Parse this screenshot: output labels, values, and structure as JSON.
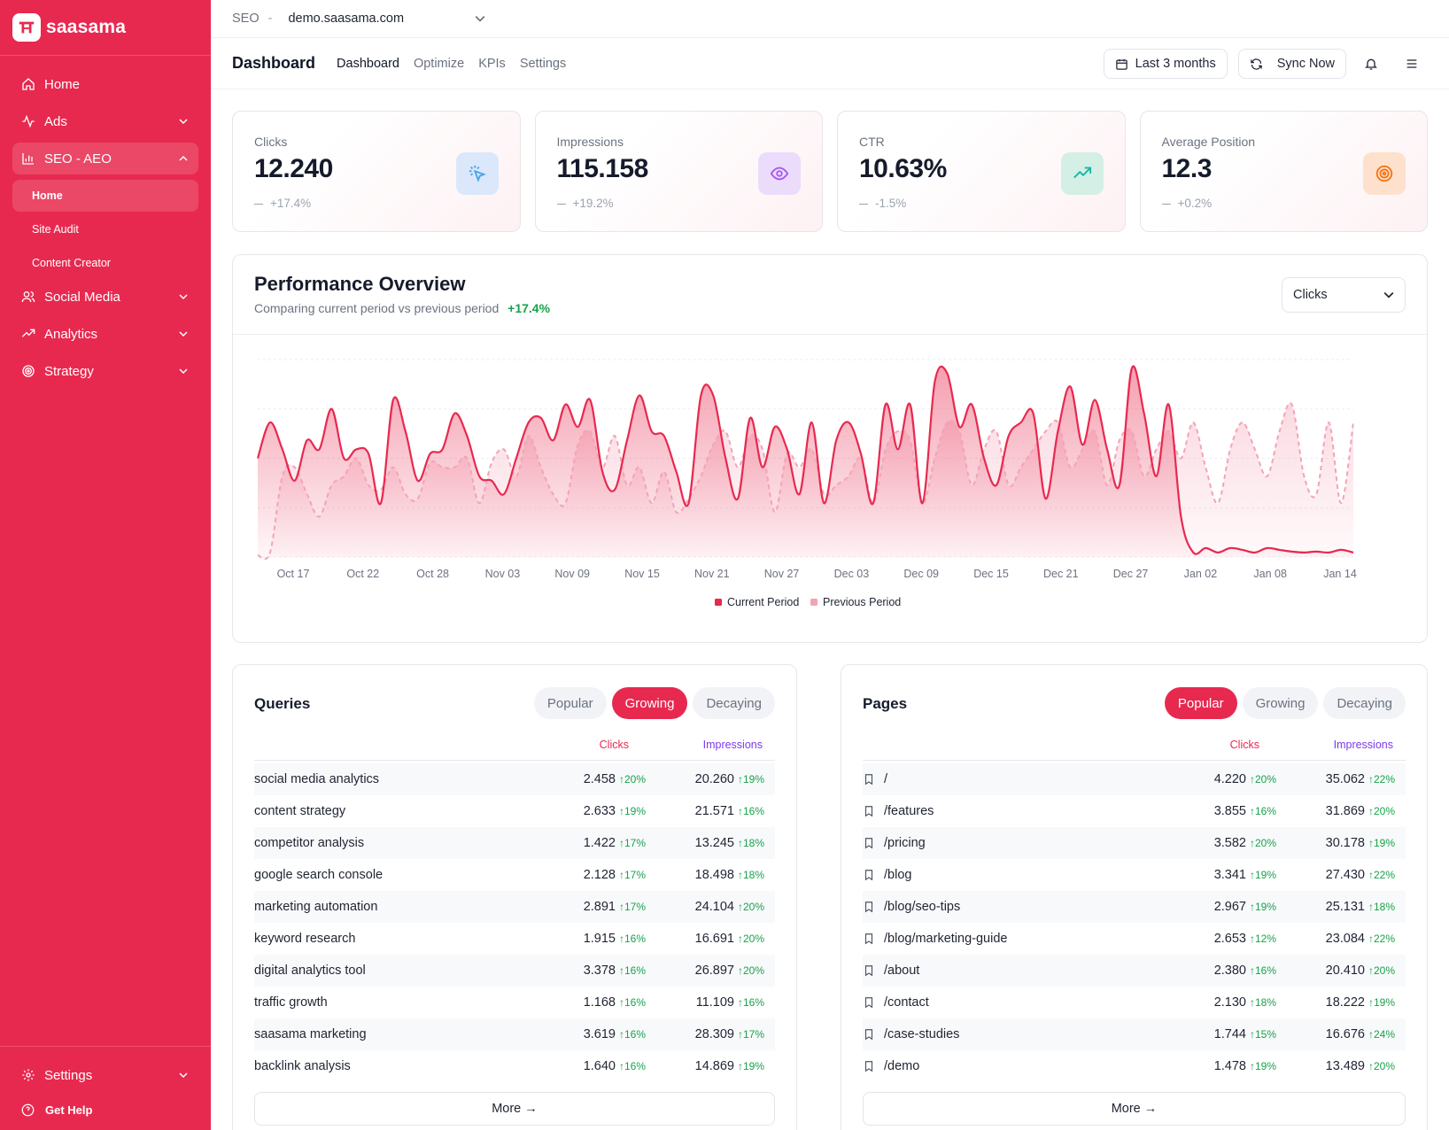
{
  "brand": {
    "name": "saasama",
    "accent": "#e8294f"
  },
  "sidebar": {
    "items": [
      {
        "label": "Home"
      },
      {
        "label": "Ads"
      },
      {
        "label": "SEO - AEO"
      },
      {
        "label": "Social Media"
      },
      {
        "label": "Analytics"
      },
      {
        "label": "Strategy"
      }
    ],
    "seo_sub": [
      "Home",
      "Site Audit",
      "Content Creator"
    ],
    "settings": "Settings",
    "help": "Get Help"
  },
  "topbar": {
    "label": "SEO",
    "separator": "-",
    "site": "demo.saasama.com"
  },
  "subbar": {
    "title": "Dashboard",
    "tabs": [
      "Dashboard",
      "Optimize",
      "KPIs",
      "Settings"
    ],
    "range_button": "Last 3 months",
    "sync_button": "Sync Now"
  },
  "stats": [
    {
      "label": "Clicks",
      "value": "12.240",
      "change": "+17.4%",
      "icon": "cursor-click-icon",
      "icon_bg": "#dbe7fb",
      "icon_color": "#4aa4e8"
    },
    {
      "label": "Impressions",
      "value": "115.158",
      "change": "+19.2%",
      "icon": "eye-icon",
      "icon_bg": "#ecdcfb",
      "icon_color": "#a855f7"
    },
    {
      "label": "CTR",
      "value": "10.63%",
      "change": "-1.5%",
      "icon": "trending-up-icon",
      "icon_bg": "#d3efe6",
      "icon_color": "#14b8a6"
    },
    {
      "label": "Average Position",
      "value": "12.3",
      "change": "+0.2%",
      "icon": "target-icon",
      "icon_bg": "#fde1cc",
      "icon_color": "#f97316"
    }
  ],
  "performance": {
    "title": "Performance Overview",
    "subtitle": "Comparing current period vs previous period",
    "change": "+17.4%",
    "metric_select": "Clicks"
  },
  "chart_data": {
    "type": "area",
    "title": "Performance Overview",
    "x_ticks": [
      "Oct 17",
      "Oct 22",
      "Oct 28",
      "Nov 03",
      "Nov 09",
      "Nov 15",
      "Nov 21",
      "Nov 27",
      "Dec 03",
      "Dec 09",
      "Dec 15",
      "Dec 21",
      "Dec 27",
      "Jan 02",
      "Jan 08",
      "Jan 14"
    ],
    "ylim": [
      0,
      220
    ],
    "legend": [
      "Current Period",
      "Previous Period"
    ],
    "series": [
      {
        "name": "Current Period",
        "color": "#e8294f",
        "style": "solid",
        "values": [
          110,
          150,
          120,
          85,
          130,
          120,
          165,
          110,
          120,
          115,
          60,
          175,
          140,
          85,
          115,
          120,
          160,
          135,
          90,
          85,
          70,
          110,
          150,
          155,
          130,
          170,
          145,
          175,
          95,
          75,
          130,
          180,
          140,
          135,
          95,
          60,
          180,
          180,
          110,
          65,
          155,
          100,
          145,
          120,
          70,
          150,
          60,
          130,
          150,
          115,
          60,
          170,
          120,
          170,
          60,
          195,
          205,
          145,
          170,
          110,
          80,
          135,
          150,
          160,
          65,
          140,
          190,
          125,
          175,
          120,
          80,
          210,
          160,
          90,
          170,
          45,
          5,
          10,
          5,
          10,
          8,
          5,
          10,
          8,
          6,
          5,
          6,
          5,
          8,
          5
        ]
      },
      {
        "name": "Previous Period",
        "color": "#f4a3b6",
        "style": "dashed",
        "values": [
          2,
          5,
          90,
          100,
          70,
          45,
          80,
          90,
          110,
          80,
          75,
          100,
          70,
          65,
          105,
          100,
          100,
          110,
          60,
          105,
          120,
          90,
          135,
          100,
          70,
          60,
          125,
          140,
          100,
          135,
          80,
          100,
          60,
          95,
          50,
          65,
          90,
          125,
          140,
          100,
          135,
          120,
          50,
          115,
          100,
          120,
          70,
          80,
          90,
          110,
          60,
          120,
          140,
          130,
          60,
          110,
          150,
          140,
          80,
          120,
          140,
          80,
          100,
          120,
          140,
          150,
          100,
          120,
          140,
          80,
          130,
          140,
          90,
          120,
          140,
          110,
          150,
          100,
          60,
          120,
          150,
          120,
          90,
          140,
          170,
          90,
          70,
          150,
          60,
          150
        ]
      }
    ]
  },
  "queries": {
    "title": "Queries",
    "pills": [
      "Popular",
      "Growing",
      "Decaying"
    ],
    "active_pill": 1,
    "col_clicks": "Clicks",
    "col_impressions": "Impressions",
    "rows": [
      {
        "name": "social media analytics",
        "clicks": "2.458",
        "clicks_chg": "↑20%",
        "impr": "20.260",
        "impr_chg": "↑19%"
      },
      {
        "name": "content strategy",
        "clicks": "2.633",
        "clicks_chg": "↑19%",
        "impr": "21.571",
        "impr_chg": "↑16%"
      },
      {
        "name": "competitor analysis",
        "clicks": "1.422",
        "clicks_chg": "↑17%",
        "impr": "13.245",
        "impr_chg": "↑18%"
      },
      {
        "name": "google search console",
        "clicks": "2.128",
        "clicks_chg": "↑17%",
        "impr": "18.498",
        "impr_chg": "↑18%"
      },
      {
        "name": "marketing automation",
        "clicks": "2.891",
        "clicks_chg": "↑17%",
        "impr": "24.104",
        "impr_chg": "↑20%"
      },
      {
        "name": "keyword research",
        "clicks": "1.915",
        "clicks_chg": "↑16%",
        "impr": "16.691",
        "impr_chg": "↑20%"
      },
      {
        "name": "digital analytics tool",
        "clicks": "3.378",
        "clicks_chg": "↑16%",
        "impr": "26.897",
        "impr_chg": "↑20%"
      },
      {
        "name": "traffic growth",
        "clicks": "1.168",
        "clicks_chg": "↑16%",
        "impr": "11.109",
        "impr_chg": "↑16%"
      },
      {
        "name": "saasama marketing",
        "clicks": "3.619",
        "clicks_chg": "↑16%",
        "impr": "28.309",
        "impr_chg": "↑17%"
      },
      {
        "name": "backlink analysis",
        "clicks": "1.640",
        "clicks_chg": "↑16%",
        "impr": "14.869",
        "impr_chg": "↑19%"
      }
    ],
    "more": "More →"
  },
  "pages": {
    "title": "Pages",
    "pills": [
      "Popular",
      "Growing",
      "Decaying"
    ],
    "active_pill": 0,
    "col_clicks": "Clicks",
    "col_impressions": "Impressions",
    "rows": [
      {
        "name": "/",
        "clicks": "4.220",
        "clicks_chg": "↑20%",
        "impr": "35.062",
        "impr_chg": "↑22%"
      },
      {
        "name": "/features",
        "clicks": "3.855",
        "clicks_chg": "↑16%",
        "impr": "31.869",
        "impr_chg": "↑20%"
      },
      {
        "name": "/pricing",
        "clicks": "3.582",
        "clicks_chg": "↑20%",
        "impr": "30.178",
        "impr_chg": "↑19%"
      },
      {
        "name": "/blog",
        "clicks": "3.341",
        "clicks_chg": "↑19%",
        "impr": "27.430",
        "impr_chg": "↑22%"
      },
      {
        "name": "/blog/seo-tips",
        "clicks": "2.967",
        "clicks_chg": "↑19%",
        "impr": "25.131",
        "impr_chg": "↑18%"
      },
      {
        "name": "/blog/marketing-guide",
        "clicks": "2.653",
        "clicks_chg": "↑12%",
        "impr": "23.084",
        "impr_chg": "↑22%"
      },
      {
        "name": "/about",
        "clicks": "2.380",
        "clicks_chg": "↑16%",
        "impr": "20.410",
        "impr_chg": "↑20%"
      },
      {
        "name": "/contact",
        "clicks": "2.130",
        "clicks_chg": "↑18%",
        "impr": "18.222",
        "impr_chg": "↑19%"
      },
      {
        "name": "/case-studies",
        "clicks": "1.744",
        "clicks_chg": "↑15%",
        "impr": "16.676",
        "impr_chg": "↑24%"
      },
      {
        "name": "/demo",
        "clicks": "1.478",
        "clicks_chg": "↑19%",
        "impr": "13.489",
        "impr_chg": "↑20%"
      }
    ],
    "more": "More →"
  }
}
